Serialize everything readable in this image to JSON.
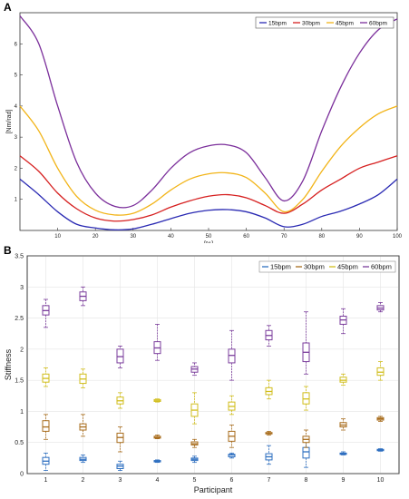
{
  "chart_data": [
    {
      "panel_label": "A",
      "type": "line",
      "xlabel": "[%]",
      "ylabel": "[Nm/rad]",
      "xlim": [
        0,
        100
      ],
      "ylim": [
        0,
        7
      ],
      "xticks": [
        10,
        20,
        30,
        40,
        50,
        60,
        70,
        80,
        90,
        100
      ],
      "yticks": [
        1,
        2,
        3,
        4,
        5,
        6
      ],
      "grid": false,
      "legend_position": "top-right",
      "series": [
        {
          "name": "15bpm",
          "color": "#2a2ab3",
          "x": [
            0,
            5,
            10,
            15,
            20,
            25,
            30,
            35,
            40,
            45,
            50,
            55,
            60,
            65,
            70,
            75,
            80,
            85,
            90,
            95,
            100
          ],
          "y": [
            1.65,
            1.15,
            0.6,
            0.2,
            0.08,
            0.02,
            0.05,
            0.2,
            0.38,
            0.55,
            0.65,
            0.67,
            0.6,
            0.4,
            0.12,
            0.2,
            0.45,
            0.62,
            0.85,
            1.15,
            1.65
          ]
        },
        {
          "name": "30bpm",
          "color": "#d62020",
          "x": [
            0,
            5,
            10,
            15,
            20,
            25,
            30,
            35,
            40,
            45,
            50,
            55,
            60,
            65,
            70,
            75,
            80,
            85,
            90,
            95,
            100
          ],
          "y": [
            2.4,
            1.9,
            1.2,
            0.7,
            0.4,
            0.3,
            0.35,
            0.5,
            0.75,
            0.95,
            1.1,
            1.15,
            1.05,
            0.8,
            0.55,
            0.85,
            1.3,
            1.65,
            2.0,
            2.2,
            2.4
          ]
        },
        {
          "name": "45bpm",
          "color": "#f2b418",
          "x": [
            0,
            5,
            10,
            15,
            20,
            25,
            30,
            35,
            40,
            45,
            50,
            55,
            60,
            65,
            70,
            75,
            80,
            85,
            90,
            95,
            100
          ],
          "y": [
            4.0,
            3.2,
            2.0,
            1.1,
            0.65,
            0.5,
            0.55,
            0.85,
            1.3,
            1.65,
            1.82,
            1.85,
            1.7,
            1.2,
            0.6,
            1.0,
            1.9,
            2.7,
            3.3,
            3.75,
            4.0
          ]
        },
        {
          "name": "60bpm",
          "color": "#7b2f9b",
          "x": [
            0,
            5,
            10,
            15,
            20,
            25,
            30,
            35,
            40,
            45,
            50,
            55,
            60,
            65,
            70,
            75,
            80,
            85,
            90,
            95,
            100
          ],
          "y": [
            6.9,
            6.0,
            4.0,
            2.2,
            1.2,
            0.78,
            0.8,
            1.3,
            2.0,
            2.5,
            2.72,
            2.75,
            2.5,
            1.7,
            0.95,
            1.6,
            3.2,
            4.6,
            5.7,
            6.45,
            6.8
          ]
        }
      ]
    },
    {
      "panel_label": "B",
      "type": "box",
      "xlabel": "Participant",
      "ylabel": "Stiffness",
      "categories": [
        "1",
        "2",
        "3",
        "4",
        "5",
        "6",
        "7",
        "8",
        "9",
        "10"
      ],
      "ylim": [
        0,
        3.5
      ],
      "yticks": [
        "0",
        "0.5",
        "1",
        "1.5",
        "2",
        "2.5",
        "3",
        "3.5"
      ],
      "grid": true,
      "legend_position": "top-right",
      "series": [
        {
          "name": "15bpm",
          "color": "#2e6fc0",
          "boxes": [
            {
              "min": 0.05,
              "q1": 0.15,
              "median": 0.2,
              "q3": 0.26,
              "max": 0.33
            },
            {
              "min": 0.18,
              "q1": 0.21,
              "median": 0.23,
              "q3": 0.26,
              "max": 0.3
            },
            {
              "min": 0.05,
              "q1": 0.08,
              "median": 0.12,
              "q3": 0.15,
              "max": 0.2
            },
            {
              "min": 0.18,
              "q1": 0.19,
              "median": 0.2,
              "q3": 0.21,
              "max": 0.22
            },
            {
              "min": 0.18,
              "q1": 0.21,
              "median": 0.23,
              "q3": 0.25,
              "max": 0.28
            },
            {
              "min": 0.25,
              "q1": 0.27,
              "median": 0.3,
              "q3": 0.31,
              "max": 0.33
            },
            {
              "min": 0.15,
              "q1": 0.22,
              "median": 0.27,
              "q3": 0.32,
              "max": 0.45
            },
            {
              "min": 0.1,
              "q1": 0.25,
              "median": 0.35,
              "q3": 0.42,
              "max": 0.6
            },
            {
              "min": 0.3,
              "q1": 0.31,
              "median": 0.32,
              "q3": 0.33,
              "max": 0.35
            },
            {
              "min": 0.36,
              "q1": 0.37,
              "median": 0.38,
              "q3": 0.39,
              "max": 0.4
            }
          ]
        },
        {
          "name": "30bpm",
          "color": "#a86c1c",
          "boxes": [
            {
              "min": 0.55,
              "q1": 0.68,
              "median": 0.75,
              "q3": 0.85,
              "max": 0.95
            },
            {
              "min": 0.6,
              "q1": 0.7,
              "median": 0.75,
              "q3": 0.8,
              "max": 0.95
            },
            {
              "min": 0.35,
              "q1": 0.5,
              "median": 0.58,
              "q3": 0.65,
              "max": 0.75
            },
            {
              "min": 0.56,
              "q1": 0.57,
              "median": 0.58,
              "q3": 0.6,
              "max": 0.62
            },
            {
              "min": 0.42,
              "q1": 0.46,
              "median": 0.48,
              "q3": 0.51,
              "max": 0.55
            },
            {
              "min": 0.42,
              "q1": 0.52,
              "median": 0.6,
              "q3": 0.68,
              "max": 0.78
            },
            {
              "min": 0.62,
              "q1": 0.64,
              "median": 0.65,
              "q3": 0.66,
              "max": 0.68
            },
            {
              "min": 0.42,
              "q1": 0.5,
              "median": 0.55,
              "q3": 0.6,
              "max": 0.7
            },
            {
              "min": 0.7,
              "q1": 0.75,
              "median": 0.78,
              "q3": 0.82,
              "max": 0.88
            },
            {
              "min": 0.84,
              "q1": 0.86,
              "median": 0.88,
              "q3": 0.9,
              "max": 0.92
            }
          ]
        },
        {
          "name": "45bpm",
          "color": "#d1be1c",
          "boxes": [
            {
              "min": 1.4,
              "q1": 1.47,
              "median": 1.53,
              "q3": 1.6,
              "max": 1.7
            },
            {
              "min": 1.38,
              "q1": 1.45,
              "median": 1.52,
              "q3": 1.6,
              "max": 1.68
            },
            {
              "min": 1.05,
              "q1": 1.12,
              "median": 1.17,
              "q3": 1.23,
              "max": 1.3
            },
            {
              "min": 1.15,
              "q1": 1.16,
              "median": 1.17,
              "q3": 1.19,
              "max": 1.2
            },
            {
              "min": 0.8,
              "q1": 0.92,
              "median": 1.02,
              "q3": 1.12,
              "max": 1.3
            },
            {
              "min": 0.95,
              "q1": 1.02,
              "median": 1.08,
              "q3": 1.15,
              "max": 1.25
            },
            {
              "min": 1.2,
              "q1": 1.27,
              "median": 1.32,
              "q3": 1.38,
              "max": 1.5
            },
            {
              "min": 1.02,
              "q1": 1.12,
              "median": 1.2,
              "q3": 1.3,
              "max": 1.4
            },
            {
              "min": 1.42,
              "q1": 1.47,
              "median": 1.5,
              "q3": 1.55,
              "max": 1.6
            },
            {
              "min": 1.5,
              "q1": 1.58,
              "median": 1.63,
              "q3": 1.7,
              "max": 1.8
            }
          ]
        },
        {
          "name": "60bpm",
          "color": "#7b3d9c",
          "boxes": [
            {
              "min": 2.35,
              "q1": 2.55,
              "median": 2.62,
              "q3": 2.7,
              "max": 2.8
            },
            {
              "min": 2.7,
              "q1": 2.78,
              "median": 2.85,
              "q3": 2.92,
              "max": 3.0
            },
            {
              "min": 1.7,
              "q1": 1.78,
              "median": 1.88,
              "q3": 2.0,
              "max": 2.05
            },
            {
              "min": 1.82,
              "q1": 1.93,
              "median": 2.02,
              "q3": 2.12,
              "max": 2.4
            },
            {
              "min": 1.58,
              "q1": 1.63,
              "median": 1.68,
              "q3": 1.72,
              "max": 1.78
            },
            {
              "min": 1.5,
              "q1": 1.78,
              "median": 1.9,
              "q3": 2.0,
              "max": 2.3
            },
            {
              "min": 2.05,
              "q1": 2.15,
              "median": 2.22,
              "q3": 2.3,
              "max": 2.38
            },
            {
              "min": 1.6,
              "q1": 1.8,
              "median": 1.95,
              "q3": 2.1,
              "max": 2.6
            },
            {
              "min": 2.25,
              "q1": 2.4,
              "median": 2.47,
              "q3": 2.53,
              "max": 2.65
            },
            {
              "min": 2.6,
              "q1": 2.63,
              "median": 2.66,
              "q3": 2.7,
              "max": 2.75
            }
          ]
        }
      ]
    }
  ]
}
